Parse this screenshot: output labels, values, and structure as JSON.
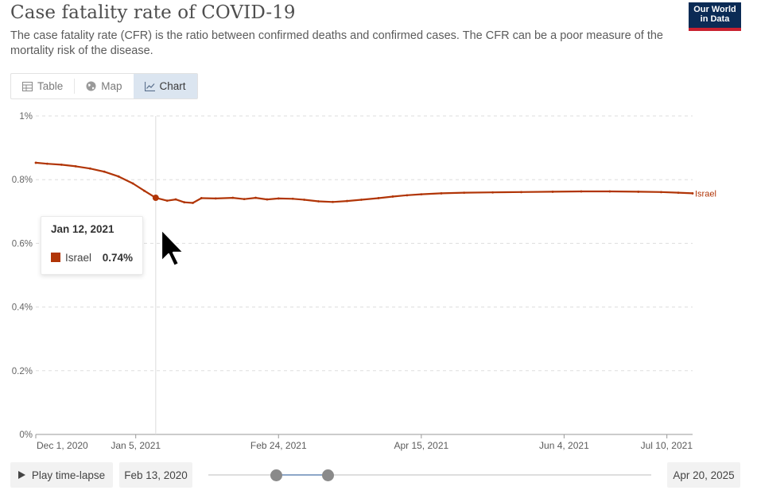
{
  "header": {
    "title": "Case fatality rate of COVID-19",
    "subtitle": "The case fatality rate (CFR) is the ratio between confirmed deaths and confirmed cases. The CFR can be a poor measure of the mortality risk of the disease.",
    "logo_line1": "Our World",
    "logo_line2": "in Data",
    "logo_colors": {
      "bg": "#0b2b55",
      "accent": "#c8202f"
    }
  },
  "tabs": [
    {
      "label": "Table",
      "icon": "table-icon",
      "active": false
    },
    {
      "label": "Map",
      "icon": "globe-icon",
      "active": false
    },
    {
      "label": "Chart",
      "icon": "line-chart-icon",
      "active": true
    }
  ],
  "tooltip": {
    "date": "Jan 12, 2021",
    "entity": "Israel",
    "value": "0.74%",
    "color": "#b13507"
  },
  "footer": {
    "play_label": "Play time-lapse",
    "start_date": "Feb 13, 2020",
    "end_date": "Apr 20, 2025"
  },
  "chart_data": {
    "type": "line",
    "title": "Case fatality rate of COVID-19",
    "xlabel": "",
    "ylabel": "",
    "ylim": [
      0,
      1
    ],
    "y_ticks": [
      {
        "value": 0,
        "label": "0%"
      },
      {
        "value": 0.2,
        "label": "0.2%"
      },
      {
        "value": 0.4,
        "label": "0.4%"
      },
      {
        "value": 0.6,
        "label": "0.6%"
      },
      {
        "value": 0.8,
        "label": "0.8%"
      },
      {
        "value": 1,
        "label": "1%"
      }
    ],
    "x_domain": [
      "2020-12-01",
      "2021-07-19"
    ],
    "x_ticks": [
      {
        "date": "2020-12-01",
        "label": "Dec 1, 2020"
      },
      {
        "date": "2021-01-05",
        "label": "Jan 5, 2021"
      },
      {
        "date": "2021-02-24",
        "label": "Feb 24, 2021"
      },
      {
        "date": "2021-04-15",
        "label": "Apr 15, 2021"
      },
      {
        "date": "2021-06-04",
        "label": "Jun 4, 2021"
      },
      {
        "date": "2021-07-10",
        "label": "Jul 10, 2021"
      }
    ],
    "hover_date": "2021-01-12",
    "series": [
      {
        "name": "Israel",
        "color": "#b13507",
        "points": [
          [
            "2020-12-01",
            0.853
          ],
          [
            "2020-12-05",
            0.85
          ],
          [
            "2020-12-10",
            0.847
          ],
          [
            "2020-12-15",
            0.842
          ],
          [
            "2020-12-20",
            0.835
          ],
          [
            "2020-12-25",
            0.825
          ],
          [
            "2020-12-30",
            0.81
          ],
          [
            "2021-01-04",
            0.788
          ],
          [
            "2021-01-08",
            0.765
          ],
          [
            "2021-01-12",
            0.743
          ],
          [
            "2021-01-16",
            0.734
          ],
          [
            "2021-01-19",
            0.738
          ],
          [
            "2021-01-22",
            0.729
          ],
          [
            "2021-01-25",
            0.727
          ],
          [
            "2021-01-28",
            0.742
          ],
          [
            "2021-02-02",
            0.741
          ],
          [
            "2021-02-08",
            0.743
          ],
          [
            "2021-02-12",
            0.739
          ],
          [
            "2021-02-16",
            0.743
          ],
          [
            "2021-02-20",
            0.738
          ],
          [
            "2021-02-24",
            0.741
          ],
          [
            "2021-03-01",
            0.74
          ],
          [
            "2021-03-05",
            0.737
          ],
          [
            "2021-03-10",
            0.732
          ],
          [
            "2021-03-15",
            0.73
          ],
          [
            "2021-03-20",
            0.733
          ],
          [
            "2021-03-25",
            0.737
          ],
          [
            "2021-03-31",
            0.742
          ],
          [
            "2021-04-05",
            0.747
          ],
          [
            "2021-04-10",
            0.751
          ],
          [
            "2021-04-15",
            0.754
          ],
          [
            "2021-04-22",
            0.757
          ],
          [
            "2021-04-30",
            0.759
          ],
          [
            "2021-05-10",
            0.76
          ],
          [
            "2021-05-20",
            0.761
          ],
          [
            "2021-05-31",
            0.762
          ],
          [
            "2021-06-10",
            0.763
          ],
          [
            "2021-06-20",
            0.763
          ],
          [
            "2021-06-30",
            0.762
          ],
          [
            "2021-07-08",
            0.761
          ],
          [
            "2021-07-14",
            0.759
          ],
          [
            "2021-07-19",
            0.757
          ]
        ]
      }
    ]
  }
}
